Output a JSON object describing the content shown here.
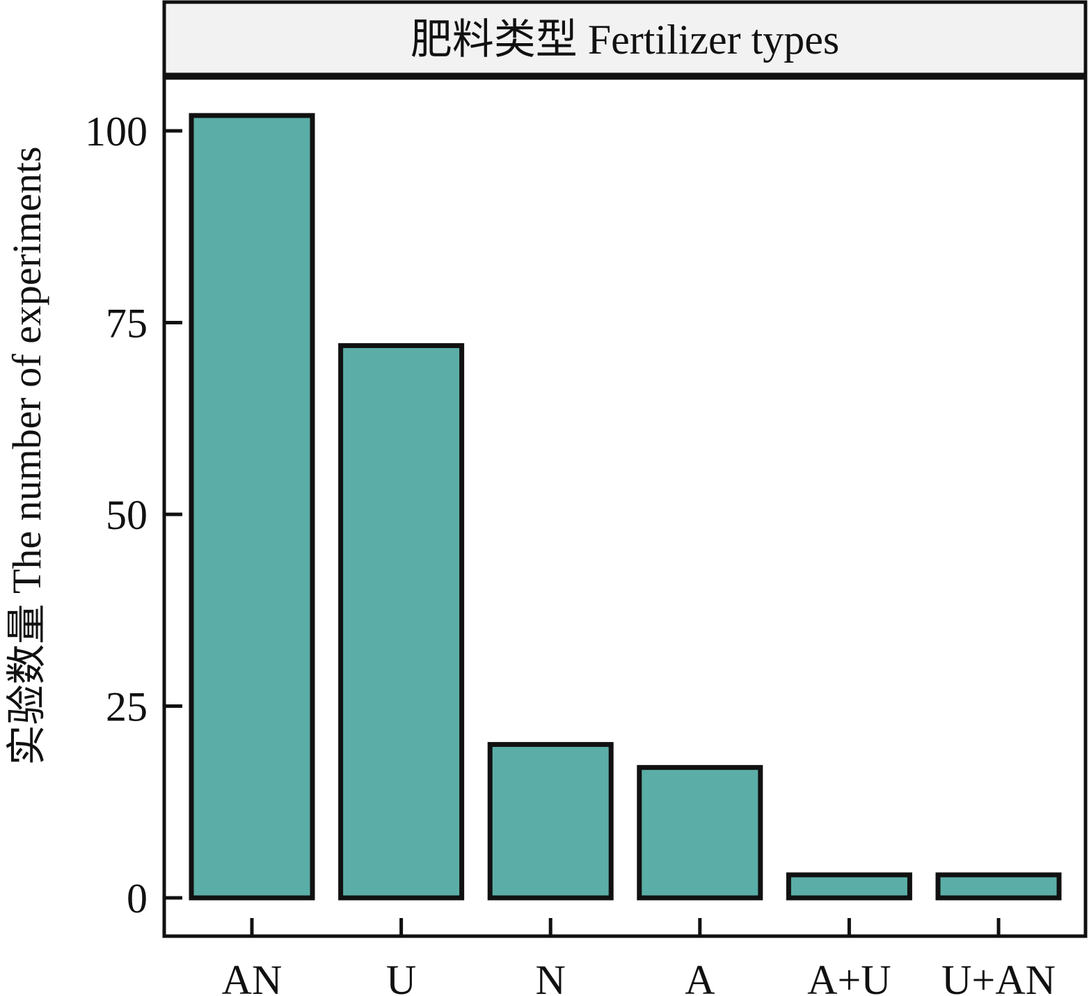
{
  "chart_data": {
    "type": "bar",
    "title": "",
    "facet_strip": "肥料类型 Fertilizer types",
    "xlabel": "",
    "ylabel": "实验数量 The number of experiments",
    "categories": [
      "AN",
      "U",
      "N",
      "A",
      "A+U",
      "U+AN"
    ],
    "values": [
      102,
      72,
      20,
      17,
      3,
      3
    ],
    "yticks": [
      0,
      25,
      50,
      75,
      100
    ],
    "ylim": [
      -5,
      107
    ],
    "grid": false,
    "legend": "none",
    "colors": {
      "bar_fill": "#5BAEA7",
      "bar_stroke": "#111111",
      "strip_fill": "#F2F2F2",
      "axis": "#111111"
    }
  }
}
